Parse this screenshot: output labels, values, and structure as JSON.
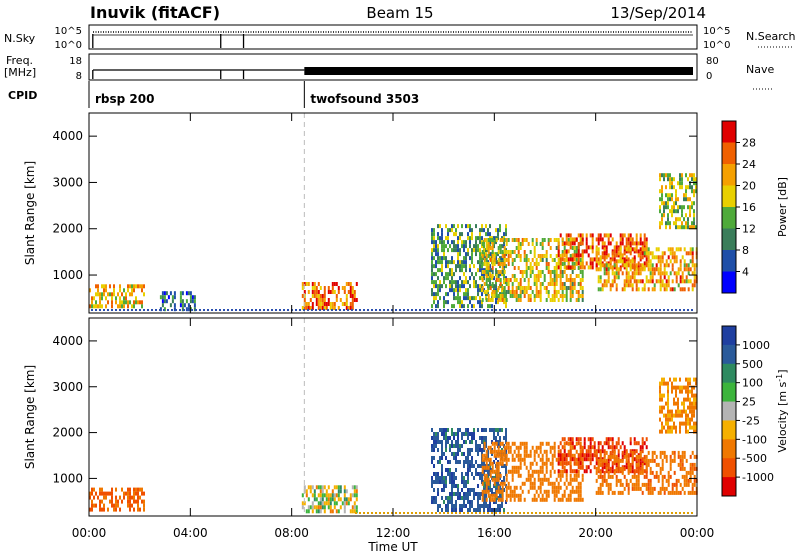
{
  "header": {
    "radar": "Inuvik (fitACF)",
    "beam": "Beam 15",
    "date": "13/Sep/2014"
  },
  "nsky": {
    "label": "N.Sky",
    "tick_top": "10^5",
    "tick_bottom": "10^0",
    "right_label": "N.Search",
    "right_tick_top": "10^5",
    "right_tick_bottom": "10^0"
  },
  "freq": {
    "label_line1": "Freq.",
    "label_line2": "[MHz]",
    "tick_top": "18",
    "tick_bottom": "8",
    "right_label": "Nave",
    "right_tick_top": "80",
    "right_tick_bottom": "0"
  },
  "cpid": {
    "label": "CPID",
    "programs": [
      {
        "name": "rbsp 200",
        "start_hour": 0
      },
      {
        "name": "twofsound 3503",
        "start_hour": 8.5
      }
    ]
  },
  "x_axis": {
    "label": "Time UT",
    "ticks": [
      "00:00",
      "04:00",
      "08:00",
      "12:00",
      "16:00",
      "20:00",
      "00:00"
    ],
    "tick_hours": [
      0,
      4,
      8,
      12,
      16,
      20,
      24
    ],
    "range_hours": [
      0,
      24
    ]
  },
  "colors": {
    "power_scale": [
      "#0000ff",
      "#1f4fa8",
      "#3a7d5a",
      "#4faa3a",
      "#e8d000",
      "#f5a000",
      "#f06000",
      "#e00000"
    ],
    "velocity_scale": [
      "#e00000",
      "#f05000",
      "#f07800",
      "#f5b000",
      "#b4b4b4",
      "#3cb43c",
      "#2e8a60",
      "#2a5a9a",
      "#1f3fa0"
    ]
  },
  "chart_data": [
    {
      "type": "heatmap",
      "panel": "power",
      "ylabel": "Slant Range [km]",
      "yticks": [
        1000,
        2000,
        3000,
        4000
      ],
      "ylim": [
        180,
        4500
      ],
      "xlim": [
        0,
        24
      ],
      "colorbar": {
        "label": "Power [dB]",
        "range": [
          0,
          32
        ],
        "ticks": [
          "28",
          "24",
          "20",
          "16",
          "12",
          "8",
          "4"
        ],
        "tick_values": [
          28,
          24,
          20,
          16,
          12,
          8,
          4
        ]
      },
      "echo_regions": [
        {
          "t0": 0.0,
          "t1": 2.2,
          "r0": 300,
          "r1": 800,
          "value": 20
        },
        {
          "t0": 2.8,
          "t1": 4.2,
          "r0": 300,
          "r1": 650,
          "value": 10
        },
        {
          "t0": 8.4,
          "t1": 10.6,
          "r0": 300,
          "r1": 850,
          "value": 24
        },
        {
          "t0": 13.5,
          "t1": 16.5,
          "r0": 300,
          "r1": 2100,
          "value": 12
        },
        {
          "t0": 15.5,
          "t1": 19.5,
          "r0": 500,
          "r1": 1800,
          "value": 18
        },
        {
          "t0": 18.5,
          "t1": 22.0,
          "r0": 1200,
          "r1": 1900,
          "value": 26
        },
        {
          "t0": 20.0,
          "t1": 24.0,
          "r0": 700,
          "r1": 1600,
          "value": 22
        },
        {
          "t0": 22.5,
          "t1": 24.0,
          "r0": 2000,
          "r1": 3200,
          "value": 16
        }
      ]
    },
    {
      "type": "heatmap",
      "panel": "velocity",
      "ylabel": "Slant Range [km]",
      "yticks": [
        1000,
        2000,
        3000,
        4000
      ],
      "ylim": [
        180,
        4500
      ],
      "xlim": [
        0,
        24
      ],
      "colorbar": {
        "label": "Velocity [m s^-1]",
        "ticks": [
          "1000",
          "500",
          "100",
          "25",
          "-25",
          "-100",
          "-500",
          "-1000"
        ],
        "tick_values": [
          1000,
          500,
          100,
          25,
          -25,
          -100,
          -500,
          -1000
        ]
      },
      "echo_regions": [
        {
          "t0": 0.0,
          "t1": 2.2,
          "r0": 300,
          "r1": 800,
          "value": -600
        },
        {
          "t0": 8.4,
          "t1": 10.6,
          "r0": 300,
          "r1": 850,
          "value": 0
        },
        {
          "t0": 13.5,
          "t1": 16.5,
          "r0": 300,
          "r1": 2100,
          "value": 800
        },
        {
          "t0": 15.5,
          "t1": 19.5,
          "r0": 500,
          "r1": 1800,
          "value": -300
        },
        {
          "t0": 18.5,
          "t1": 22.0,
          "r0": 1200,
          "r1": 1900,
          "value": -900
        },
        {
          "t0": 20.0,
          "t1": 24.0,
          "r0": 700,
          "r1": 1600,
          "value": -400
        },
        {
          "t0": 22.5,
          "t1": 24.0,
          "r0": 2000,
          "r1": 3200,
          "value": -150
        }
      ]
    }
  ]
}
